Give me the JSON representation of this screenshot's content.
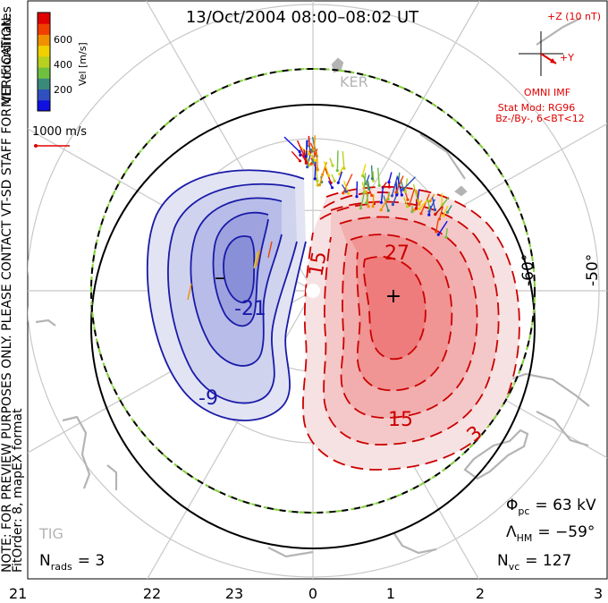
{
  "title": "13/Oct/2004 08:00–08:02 UT",
  "side_notes": {
    "coords": "MLT coordinates",
    "preview": "NOTE: FOR PREVIEW PURPOSES ONLY. PLEASE CONTACT VT-SD STAFF FOR VERIFICATION.",
    "fit": "FitOrder: 8, mapEX format"
  },
  "colorbar": {
    "label": "Vel [m/s]",
    "ticks": [
      "600",
      "400",
      "200"
    ],
    "colors": [
      "#1010e0",
      "#3050c0",
      "#3a8a7a",
      "#70c040",
      "#b8d020",
      "#f0d000",
      "#f09000",
      "#f04000",
      "#e00000"
    ]
  },
  "vector_scale": "1000 m/s",
  "imf": {
    "z_label": "+Z (10 nT)",
    "y_label": "+Y",
    "source": "OMNI IMF",
    "model": "Stat Mod: RG96",
    "condition": "Bz-/By-, 6<BT<12"
  },
  "stations": [
    "KER",
    "TIG"
  ],
  "latitude_labels": [
    "-60°",
    "-50°"
  ],
  "contour_labels": {
    "neg": [
      "-21",
      "-9",
      "–"
    ],
    "pos": [
      "27",
      "15",
      "3",
      "15",
      "+"
    ]
  },
  "mlt_labels": [
    "21",
    "22",
    "23",
    "0",
    "1",
    "2",
    "3"
  ],
  "stats": {
    "phi_pc": "Φpc = 63 kV",
    "phi_sym": "Φ",
    "phi_sub": "pc",
    "phi_val": "= 63 kV",
    "lam_sym": "Λ",
    "lam_sub": "HM",
    "lam_val": "= −59°",
    "nvc_sym": "N",
    "nvc_sub": "vc",
    "nvc_val": "= 127",
    "nrads_sym": "N",
    "nrads_sub": "rads",
    "nrads_val": "= 3"
  }
}
